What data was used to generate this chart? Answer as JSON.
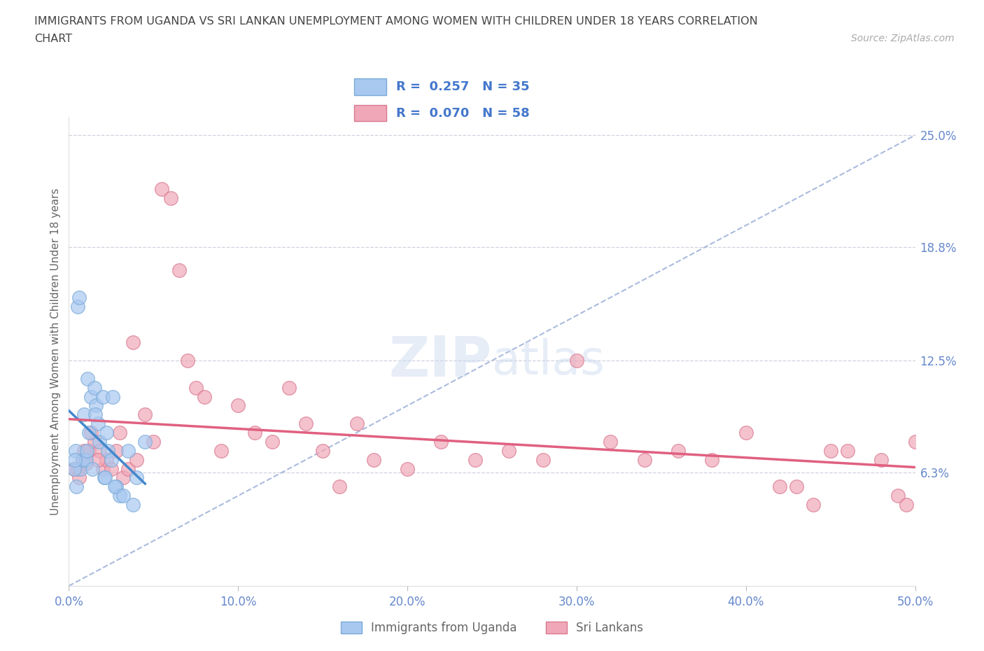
{
  "title_line1": "IMMIGRANTS FROM UGANDA VS SRI LANKAN UNEMPLOYMENT AMONG WOMEN WITH CHILDREN UNDER 18 YEARS CORRELATION",
  "title_line2": "CHART",
  "source": "Source: ZipAtlas.com",
  "ylabel": "Unemployment Among Women with Children Under 18 years",
  "xlim": [
    0,
    50
  ],
  "ylim": [
    0,
    27
  ],
  "ylim_plot": [
    0,
    26
  ],
  "xtick_values": [
    0,
    10,
    20,
    30,
    40,
    50
  ],
  "xtick_labels": [
    "0.0%",
    "10.0%",
    "20.0%",
    "30.0%",
    "40.0%",
    "50.0%"
  ],
  "ytick_values": [
    6.3,
    12.5,
    18.8,
    25.0
  ],
  "ytick_labels": [
    "6.3%",
    "12.5%",
    "18.8%",
    "25.0%"
  ],
  "watermark_zip": "ZIP",
  "watermark_atlas": "atlas",
  "uganda_color": "#a8c8f0",
  "uganda_edge_color": "#7aaad8",
  "srilanka_color": "#f0a8b8",
  "srilanka_edge_color": "#d87890",
  "uganda_trend_color": "#4488cc",
  "srilanka_trend_color": "#e06080",
  "ref_line_color": "#aabbdd",
  "grid_color": "#ccccdd",
  "title_color": "#444444",
  "axis_color": "#666666",
  "tick_color": "#6688cc",
  "legend_box_color": "#ffffff",
  "legend_border_color": "#cccccc",
  "uganda_x": [
    0.4,
    0.5,
    0.6,
    0.7,
    0.8,
    0.9,
    1.0,
    1.1,
    1.2,
    1.3,
    1.4,
    1.5,
    1.6,
    1.7,
    1.8,
    2.0,
    2.1,
    2.2,
    2.3,
    2.5,
    2.6,
    2.8,
    3.0,
    3.5,
    4.0,
    4.5,
    0.3,
    0.35,
    0.45,
    1.05,
    1.55,
    2.15,
    2.7,
    3.2,
    3.8
  ],
  "uganda_y": [
    7.5,
    15.5,
    16.0,
    6.5,
    7.0,
    9.5,
    7.0,
    11.5,
    8.5,
    10.5,
    6.5,
    11.0,
    10.0,
    9.0,
    8.0,
    10.5,
    6.0,
    8.5,
    7.5,
    7.0,
    10.5,
    5.5,
    5.0,
    7.5,
    6.0,
    8.0,
    6.5,
    7.0,
    5.5,
    7.5,
    9.5,
    6.0,
    5.5,
    5.0,
    4.5
  ],
  "srilanka_x": [
    0.5,
    0.8,
    1.0,
    1.2,
    1.5,
    1.8,
    2.0,
    2.2,
    2.5,
    2.8,
    3.0,
    3.2,
    3.5,
    3.8,
    4.0,
    4.5,
    5.0,
    5.5,
    6.0,
    6.5,
    7.0,
    7.5,
    8.0,
    9.0,
    10.0,
    11.0,
    12.0,
    13.0,
    14.0,
    15.0,
    16.0,
    17.0,
    18.0,
    20.0,
    22.0,
    24.0,
    26.0,
    28.0,
    30.0,
    32.0,
    34.0,
    36.0,
    38.0,
    40.0,
    42.0,
    43.0,
    44.0,
    45.0,
    46.0,
    48.0,
    49.0,
    49.5,
    50.0,
    0.3,
    0.6,
    0.9,
    1.3,
    1.7
  ],
  "srilanka_y": [
    6.5,
    7.0,
    6.8,
    7.5,
    8.0,
    7.5,
    6.5,
    7.0,
    6.5,
    7.5,
    8.5,
    6.0,
    6.5,
    13.5,
    7.0,
    9.5,
    8.0,
    22.0,
    21.5,
    17.5,
    12.5,
    11.0,
    10.5,
    7.5,
    10.0,
    8.5,
    8.0,
    11.0,
    9.0,
    7.5,
    5.5,
    9.0,
    7.0,
    6.5,
    8.0,
    7.0,
    7.5,
    7.0,
    12.5,
    8.0,
    7.0,
    7.5,
    7.0,
    8.5,
    5.5,
    5.5,
    4.5,
    7.5,
    7.5,
    7.0,
    5.0,
    4.5,
    8.0,
    6.5,
    6.0,
    7.5,
    8.5,
    7.0
  ]
}
